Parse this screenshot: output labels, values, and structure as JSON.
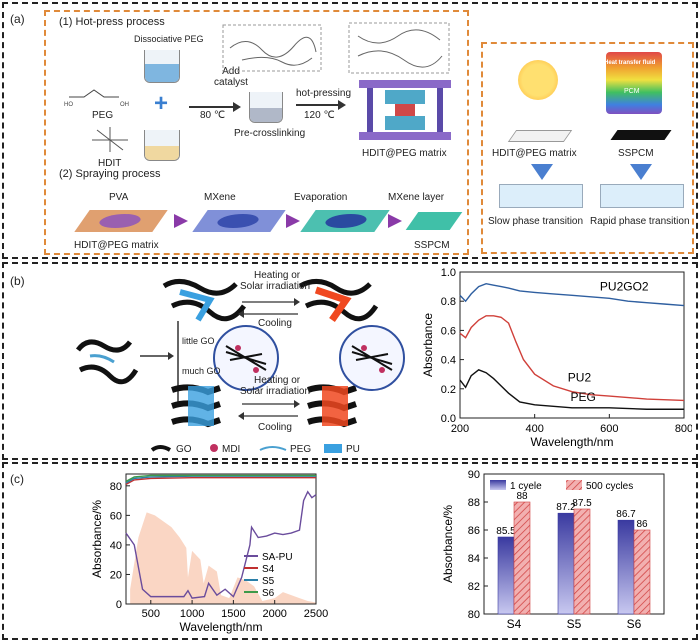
{
  "panel_a": {
    "label": "(a)",
    "hot_press_title": "(1)  Hot-press process",
    "dissociative_peg": "Dissociative PEG",
    "peg": "PEG",
    "hdit": "HDIT",
    "add_catalyst": "Add catalyst",
    "temp_80": "80 ℃",
    "pre_crosslinking": "Pre-crosslinking",
    "hot_pressing": "hot-pressing",
    "temp_120": "120 ℃",
    "hdit_peg_matrix": "HDIT@PEG matrix",
    "spraying_title": "(2)  Spraying process",
    "pva": "PVA",
    "mxene": "MXene",
    "evaporation": "Evaporation",
    "mxene_layer": "MXene layer",
    "spray_matrix": "HDIT@PEG matrix",
    "sspcm": "SSPCM",
    "right_matrix": "HDIT@PEG matrix",
    "right_sspcm": "SSPCM",
    "htf": "Heat transfer fluid",
    "pcm": "PCM",
    "slow": "Slow phase transition",
    "rapid": "Rapid phase transition"
  },
  "panel_b": {
    "label": "(b)",
    "heating1": "Heating or",
    "solar1": "Solar irradiation",
    "cooling1": "Cooling",
    "little_go": "little GO",
    "much_go": "much GO",
    "heating2": "Heating or",
    "solar2": "Solar irradiation",
    "cooling2": "Cooling",
    "legend": [
      "GO",
      "MDI",
      "PEG",
      "PU"
    ]
  },
  "panel_c": {
    "label": "(c)"
  },
  "chart_data": [
    {
      "type": "line",
      "panel": "b",
      "xlabel": "Wavelength/nm",
      "ylabel": "Absorbance",
      "xlim": [
        200,
        800
      ],
      "ylim": [
        0.0,
        1.0
      ],
      "xticks": [
        "200",
        "400",
        "600",
        "800"
      ],
      "yticks": [
        "0.0",
        "0.2",
        "0.4",
        "0.6",
        "0.8",
        "1.0"
      ],
      "series": [
        {
          "name": "PU2GO2",
          "color": "#2f5fa0",
          "x": [
            200,
            215,
            230,
            250,
            270,
            290,
            310,
            330,
            360,
            400,
            450,
            500,
            550,
            600,
            650,
            700,
            750,
            800
          ],
          "y": [
            0.84,
            0.8,
            0.85,
            0.9,
            0.92,
            0.91,
            0.9,
            0.89,
            0.87,
            0.86,
            0.85,
            0.84,
            0.83,
            0.82,
            0.8,
            0.79,
            0.78,
            0.77
          ]
        },
        {
          "name": "PU2",
          "color": "#d0403a",
          "x": [
            200,
            215,
            230,
            250,
            270,
            290,
            310,
            330,
            350,
            370,
            400,
            450,
            500,
            550,
            600,
            700,
            800
          ],
          "y": [
            0.58,
            0.55,
            0.62,
            0.67,
            0.7,
            0.7,
            0.69,
            0.65,
            0.52,
            0.4,
            0.3,
            0.22,
            0.18,
            0.16,
            0.15,
            0.13,
            0.12
          ]
        },
        {
          "name": "PEG",
          "color": "#111111",
          "x": [
            200,
            215,
            230,
            250,
            270,
            290,
            310,
            330,
            360,
            400,
            450,
            500,
            600,
            700,
            800
          ],
          "y": [
            0.26,
            0.21,
            0.29,
            0.33,
            0.31,
            0.27,
            0.22,
            0.17,
            0.11,
            0.09,
            0.08,
            0.07,
            0.07,
            0.06,
            0.06
          ]
        }
      ],
      "annotations": [
        "PU2GO2",
        "PU2",
        "PEG"
      ]
    },
    {
      "type": "line",
      "panel": "c-left",
      "xlabel": "Wavelength/nm",
      "ylabel": "Absorbance/%",
      "xlim": [
        200,
        2500
      ],
      "ylim": [
        0,
        88
      ],
      "xticks": [
        "500",
        "1000",
        "1500",
        "2000",
        "2500"
      ],
      "yticks": [
        "0",
        "20",
        "40",
        "60",
        "80"
      ],
      "series": [
        {
          "name": "SA-PU",
          "color": "#6a4c9c",
          "x": [
            200,
            300,
            400,
            500,
            700,
            900,
            950,
            1000,
            1150,
            1200,
            1300,
            1400,
            1500,
            1600,
            1700,
            1720,
            1800,
            1900,
            2000,
            2100,
            2200,
            2300,
            2350,
            2400,
            2450,
            2500
          ],
          "y": [
            48,
            40,
            10,
            5,
            5,
            5,
            9,
            4,
            5,
            14,
            6,
            10,
            5,
            18,
            40,
            52,
            45,
            46,
            48,
            47,
            48,
            50,
            70,
            76,
            72,
            74
          ]
        },
        {
          "name": "S4",
          "color": "#c03030",
          "x": [
            200,
            300,
            500,
            1000,
            1500,
            2000,
            2500
          ],
          "y": [
            81,
            84,
            85,
            85.5,
            85.5,
            85.5,
            85.5
          ]
        },
        {
          "name": "S5",
          "color": "#2a7fa8",
          "x": [
            200,
            300,
            500,
            1000,
            1500,
            2000,
            2500
          ],
          "y": [
            82,
            85,
            86,
            86.5,
            86.5,
            86.5,
            86.5
          ]
        },
        {
          "name": "S6",
          "color": "#3d9a4a",
          "x": [
            200,
            300,
            500,
            1000,
            1500,
            2000,
            2500
          ],
          "y": [
            83,
            86,
            87,
            87,
            87,
            87,
            87
          ]
        }
      ]
    },
    {
      "type": "bar",
      "panel": "c-right",
      "ylabel": "Absorbance/%",
      "categories": [
        "S4",
        "S5",
        "S6"
      ],
      "ylim": [
        80,
        90
      ],
      "yticks": [
        "80",
        "82",
        "84",
        "86",
        "88",
        "90"
      ],
      "series": [
        {
          "name": "1 cyele",
          "color": "#4a4aa8",
          "values": [
            85.5,
            87.2,
            86.7
          ]
        },
        {
          "name": "500 cycles",
          "color": "#e05a5a",
          "values": [
            88,
            87.5,
            86
          ]
        }
      ],
      "data_labels": [
        [
          "85.5",
          "88"
        ],
        [
          "87.2",
          "87.5"
        ],
        [
          "86.7",
          "86"
        ]
      ]
    }
  ]
}
